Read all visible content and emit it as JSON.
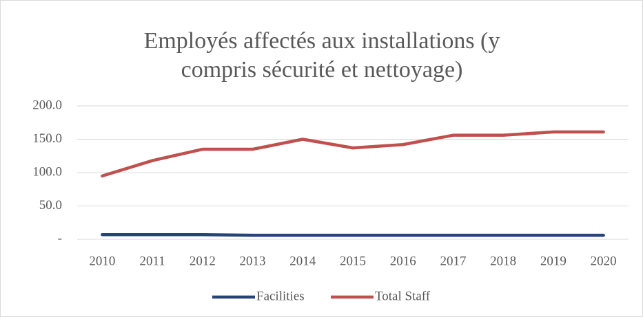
{
  "chart_data": {
    "type": "line",
    "title": [
      "Employés affectés aux installations (y",
      "compris sécurité et nettoyage)"
    ],
    "categories": [
      "2010",
      "2011",
      "2012",
      "2013",
      "2014",
      "2015",
      "2016",
      "2017",
      "2018",
      "2019",
      "2020"
    ],
    "series": [
      {
        "name": "Facilities",
        "color": "#264478",
        "values": [
          7,
          7,
          7,
          6,
          6,
          6,
          6,
          6,
          6,
          6,
          6
        ]
      },
      {
        "name": "Total Staff",
        "color": "#c0504d",
        "values": [
          95,
          118,
          135,
          135,
          150,
          137,
          142,
          156,
          156,
          161,
          161
        ]
      }
    ],
    "ylim": [
      0,
      200
    ],
    "yticks": [
      {
        "value": 0,
        "label": "-"
      },
      {
        "value": 50,
        "label": "50.0"
      },
      {
        "value": 100,
        "label": "100.0"
      },
      {
        "value": 150,
        "label": "150.0"
      },
      {
        "value": 200,
        "label": "200.0"
      }
    ],
    "grid": true,
    "legend": "bottom"
  }
}
